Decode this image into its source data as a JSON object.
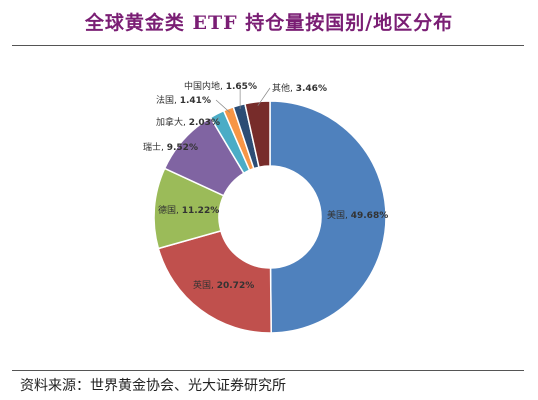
{
  "title": "全球黄金类 ETF 持仓量按国别/地区分布",
  "source": "资料来源：世界黄金协会、光大证券研究所",
  "chart_data": {
    "type": "pie",
    "donut": true,
    "title": "全球黄金类 ETF 持仓量按国别/地区分布",
    "slices": [
      {
        "label": "美国",
        "value": 49.68,
        "display": "49.68%",
        "color": "#4f81bd"
      },
      {
        "label": "英国",
        "value": 20.72,
        "display": "20.72%",
        "color": "#c0504d"
      },
      {
        "label": "德国",
        "value": 11.22,
        "display": "11.22%",
        "color": "#9bbb59"
      },
      {
        "label": "瑞士",
        "value": 9.52,
        "display": "9.52%",
        "color": "#8064a2"
      },
      {
        "label": "加拿大",
        "value": 2.03,
        "display": "2.03%",
        "color": "#4bacc6"
      },
      {
        "label": "法国",
        "value": 1.41,
        "display": "1.41%",
        "color": "#f79646"
      },
      {
        "label": "中国内地",
        "value": 1.65,
        "display": "1.65%",
        "color": "#2c4d75"
      },
      {
        "label": "其他",
        "value": 3.46,
        "display": "3.46%",
        "color": "#772c2a"
      }
    ]
  }
}
